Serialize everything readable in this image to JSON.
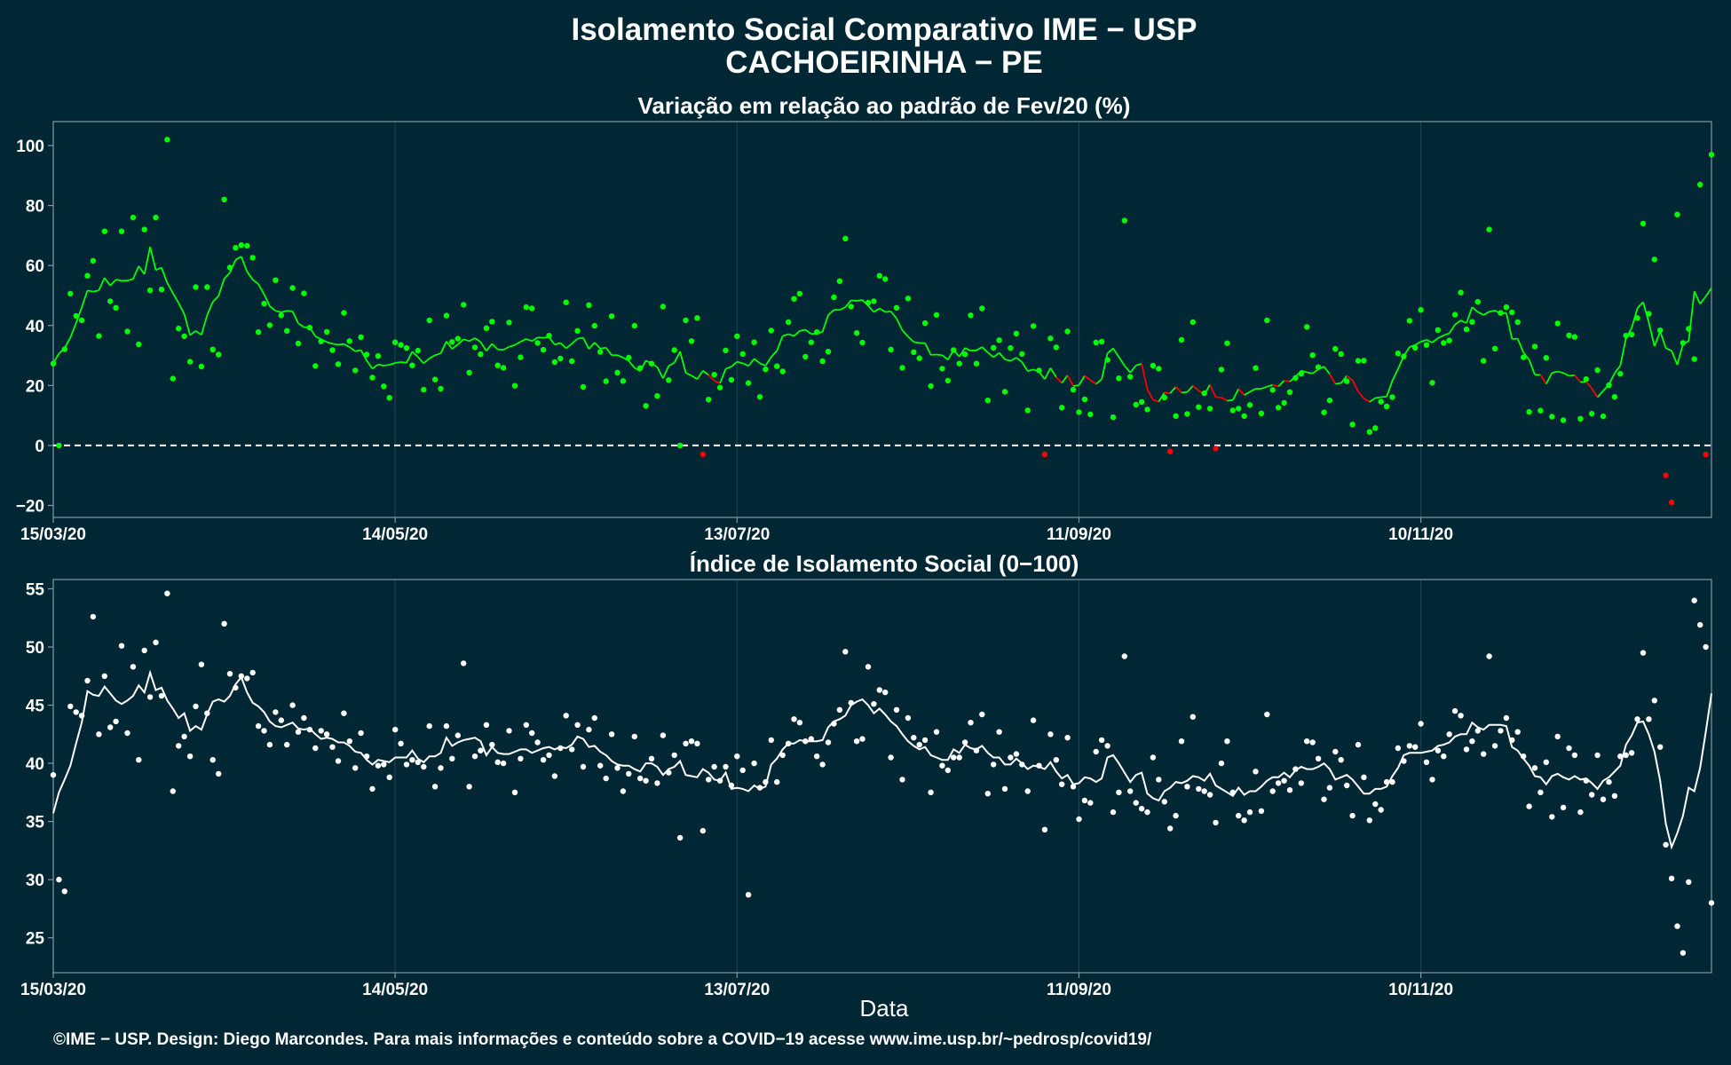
{
  "title_line1": "Isolamento Social Comparativo IME − USP",
  "title_line2": "CACHOEIRINHA − PE",
  "xlabel": "Data",
  "footer": "©IME − USP. Design: Diego Marcondes. Para mais informações e conteúdo sobre a COVID−19 acesse www.ime.usp.br/~pedrosp/covid19/",
  "colors": {
    "background": "#022734",
    "positive": "#00ff00",
    "negative": "#ff0000",
    "index": "#ffffff",
    "grid": "#1b4152",
    "border": "#7f9aa4"
  },
  "x_tick_labels": [
    "15/03/20",
    "14/05/20",
    "13/07/20",
    "11/09/20",
    "10/11/20"
  ],
  "chart_data": [
    {
      "type": "scatter",
      "title": "Variação em relação ao padrão de Fev/20 (%)",
      "x_range": [
        "15/03/20",
        "31/12/20"
      ],
      "ylim": [
        -24,
        108
      ],
      "y_ticks": [
        -20,
        0,
        20,
        40,
        60,
        80,
        100
      ],
      "reference_line": 0,
      "grid": true,
      "series": [],
      "points": [],
      "moving_average": []
    },
    {
      "type": "scatter",
      "title": "Índice de Isolamento Social (0−100)",
      "x_range": [
        "15/03/20",
        "31/12/20"
      ],
      "ylim": [
        22,
        55.8
      ],
      "y_ticks": [
        25,
        30,
        35,
        40,
        45,
        50,
        55
      ],
      "grid": true,
      "series": [],
      "points": [],
      "moving_average": []
    }
  ]
}
